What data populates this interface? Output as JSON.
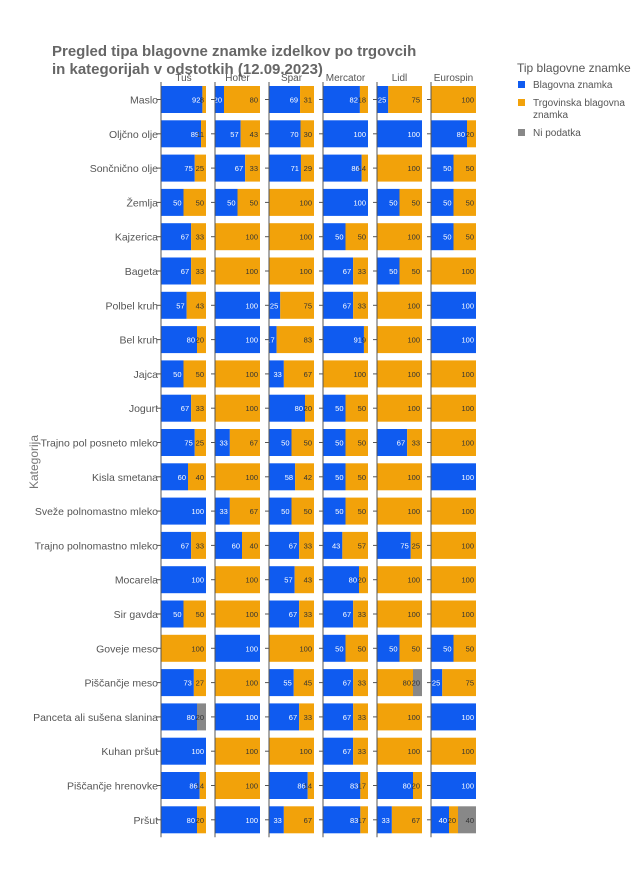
{
  "chart_data": {
    "type": "bar",
    "orientation": "horizontal",
    "stacked": true,
    "faceted_by": "retailer",
    "title": "Pregled tipa blagovne znamke izdelkov po trgovcih in kategorijah v odstotkih (12.09.2023)",
    "title_lines": [
      "Pregled tipa blagovne znamke izdelkov po trgovcih",
      "in kategorijah v odstotkih (12.09.2023)"
    ],
    "ylabel": "Kategorija",
    "xlim": [
      0,
      100
    ],
    "grid": false,
    "legend_position": "top-right",
    "legend": {
      "title": "Tip blagovne znamke",
      "entries": [
        {
          "label_lines": [
            "Blagovna znamka"
          ],
          "color": "#0f5bf0"
        },
        {
          "label_lines": [
            "Trgovinska blagovna",
            "znamka"
          ],
          "color": "#f2a20a"
        },
        {
          "label_lines": [
            "Ni podatka"
          ],
          "color": "#888888"
        }
      ]
    },
    "retailers": [
      "Tuš",
      "Hofer",
      "Spar",
      "Mercator",
      "Lidl",
      "Eurospin"
    ],
    "categories": [
      "Maslo",
      "Oljčno olje",
      "Sončnično olje",
      "Žemlja",
      "Kajzerica",
      "Bageta",
      "Polbel kruh",
      "Bel kruh",
      "Jajca",
      "Jogurt",
      "Trajno pol posneto mleko",
      "Kisla smetana",
      "Sveže polnomastno mleko",
      "Trajno polnomastno mleko",
      "Mocarela",
      "Sir gavda",
      "Goveje meso",
      "Piščančje meso",
      "Panceta ali sušena slanina",
      "Kuhan pršut",
      "Piščančje hrenovke",
      "Pršut"
    ],
    "series": [
      {
        "name": "Blagovna znamka",
        "color": "#0f5bf0",
        "values": [
          [
            92,
            89,
            75,
            50,
            67,
            67,
            57,
            80,
            50,
            67,
            75,
            60,
            100,
            67,
            100,
            50,
            0,
            73,
            80,
            100,
            86,
            80
          ],
          [
            20,
            57,
            67,
            50,
            0,
            0,
            100,
            100,
            0,
            0,
            33,
            0,
            33,
            60,
            0,
            0,
            100,
            0,
            100,
            0,
            0,
            100
          ],
          [
            69,
            70,
            71,
            0,
            0,
            0,
            25,
            17,
            33,
            80,
            50,
            58,
            50,
            67,
            57,
            67,
            0,
            55,
            67,
            0,
            86,
            33
          ],
          [
            82,
            100,
            86,
            100,
            50,
            67,
            67,
            91,
            0,
            50,
            50,
            50,
            50,
            43,
            80,
            67,
            50,
            67,
            67,
            67,
            83,
            83
          ],
          [
            25,
            100,
            0,
            50,
            0,
            50,
            0,
            0,
            0,
            0,
            67,
            0,
            0,
            75,
            0,
            0,
            50,
            0,
            0,
            0,
            80,
            33
          ],
          [
            0,
            80,
            50,
            50,
            50,
            0,
            100,
            100,
            0,
            0,
            0,
            100,
            0,
            0,
            0,
            0,
            50,
            25,
            100,
            0,
            100,
            40
          ]
        ]
      },
      {
        "name": "Trgovinska blagovna znamka",
        "color": "#f2a20a",
        "values": [
          [
            8,
            11,
            25,
            50,
            33,
            33,
            43,
            20,
            50,
            33,
            25,
            40,
            0,
            33,
            0,
            50,
            100,
            27,
            0,
            0,
            14,
            20
          ],
          [
            80,
            43,
            33,
            50,
            100,
            100,
            0,
            0,
            100,
            100,
            67,
            100,
            67,
            40,
            100,
            100,
            0,
            100,
            0,
            100,
            100,
            0
          ],
          [
            31,
            30,
            29,
            100,
            100,
            100,
            75,
            83,
            67,
            20,
            50,
            42,
            50,
            33,
            43,
            33,
            100,
            45,
            33,
            100,
            14,
            67
          ],
          [
            18,
            0,
            14,
            0,
            50,
            33,
            33,
            9,
            100,
            50,
            50,
            50,
            50,
            57,
            20,
            33,
            50,
            33,
            33,
            33,
            17,
            17
          ],
          [
            75,
            0,
            100,
            50,
            100,
            50,
            100,
            100,
            100,
            100,
            33,
            100,
            100,
            25,
            100,
            100,
            50,
            80,
            100,
            100,
            20,
            67
          ],
          [
            100,
            20,
            50,
            50,
            50,
            100,
            0,
            0,
            100,
            100,
            100,
            0,
            100,
            100,
            100,
            100,
            50,
            75,
            0,
            100,
            0,
            20
          ]
        ]
      },
      {
        "name": "Ni podatka",
        "color": "#888888",
        "values": [
          [
            0,
            0,
            0,
            0,
            0,
            0,
            0,
            0,
            0,
            0,
            0,
            0,
            0,
            0,
            0,
            0,
            0,
            0,
            20,
            0,
            0,
            0
          ],
          [
            0,
            0,
            0,
            0,
            0,
            0,
            0,
            0,
            0,
            0,
            0,
            0,
            0,
            0,
            0,
            0,
            0,
            0,
            0,
            0,
            0,
            0
          ],
          [
            0,
            0,
            0,
            0,
            0,
            0,
            0,
            0,
            0,
            0,
            0,
            0,
            0,
            0,
            0,
            0,
            0,
            0,
            0,
            0,
            0,
            0
          ],
          [
            0,
            0,
            0,
            0,
            0,
            0,
            0,
            0,
            0,
            0,
            0,
            0,
            0,
            0,
            0,
            0,
            0,
            0,
            0,
            0,
            0,
            0
          ],
          [
            0,
            0,
            0,
            0,
            0,
            0,
            0,
            0,
            0,
            0,
            0,
            0,
            0,
            0,
            0,
            0,
            0,
            20,
            0,
            0,
            0,
            0
          ],
          [
            0,
            0,
            0,
            0,
            0,
            0,
            0,
            0,
            0,
            0,
            0,
            0,
            0,
            0,
            0,
            0,
            0,
            0,
            0,
            0,
            0,
            40
          ]
        ]
      }
    ]
  }
}
